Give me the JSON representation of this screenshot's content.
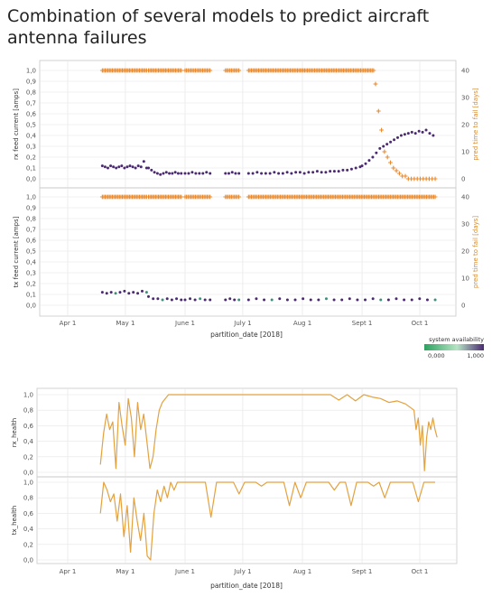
{
  "title": "Combination of several models to predict aircraft antenna failures",
  "colors": {
    "points": "#4b2a72",
    "points_alt": "#3f8f7a",
    "prediction": "#e8892b",
    "health": "#e3a23f",
    "grid": "#e6e6e6",
    "axis": "#c8c8c8"
  },
  "chart_data": [
    {
      "type": "scatter",
      "panel": "top",
      "xlabel": "partition_date [2018]",
      "x_ticks": [
        "Apr 1",
        "May 1",
        "June 1",
        "July 1",
        "Aug 1",
        "Sept 1",
        "Oct 1"
      ],
      "legend": {
        "title": "system availability",
        "min_label": "0,000",
        "max_label": "1,000",
        "colors": [
          "#2ca25f",
          "#b6e3c4",
          "#4b2a72"
        ]
      },
      "subplots": [
        {
          "name": "rx",
          "ylabel_left": "rx feed current [amps]",
          "ylabel_right": "pred time to fail [days]",
          "left_ticks": [
            "1,0",
            "0,9",
            "0,8",
            "0,7",
            "0,6",
            "0,5",
            "0,4",
            "0,3",
            "0,2",
            "0,1",
            "0,0"
          ],
          "right_ticks": [
            "40",
            "30",
            "20",
            "10",
            "0"
          ],
          "ylim_left": [
            0,
            1
          ],
          "ylim_right": [
            0,
            40
          ],
          "current_segments": [
            {
              "x_range": [
                "2018-04-19",
                "2018-05-12"
              ],
              "y_values": [
                0.12,
                0.11,
                0.1,
                0.12,
                0.11,
                0.1,
                0.11,
                0.12,
                0.1,
                0.11,
                0.12,
                0.11,
                0.1,
                0.12,
                0.11,
                0.16,
                0.1
              ]
            },
            {
              "x_range": [
                "2018-05-13",
                "2018-05-30"
              ],
              "y_values": [
                0.1,
                0.08,
                0.06,
                0.05,
                0.04,
                0.05,
                0.06,
                0.05,
                0.05,
                0.06,
                0.05,
                0.05
              ]
            },
            {
              "x_range": [
                "2018-06-01",
                "2018-06-14"
              ],
              "y_values": [
                0.05,
                0.05,
                0.06,
                0.05,
                0.05,
                0.05,
                0.06,
                0.05
              ]
            },
            {
              "x_range": [
                "2018-06-22",
                "2018-06-29"
              ],
              "y_values": [
                0.05,
                0.05,
                0.06,
                0.05,
                0.05
              ]
            },
            {
              "x_range": [
                "2018-07-04",
                "2018-08-31"
              ],
              "y_values": [
                0.05,
                0.05,
                0.06,
                0.05,
                0.05,
                0.05,
                0.06,
                0.05,
                0.05,
                0.06,
                0.05,
                0.06,
                0.06,
                0.05,
                0.06,
                0.06,
                0.07,
                0.06,
                0.06,
                0.07,
                0.07,
                0.07,
                0.08,
                0.08,
                0.09,
                0.1,
                0.11
              ]
            },
            {
              "x_range": [
                "2018-09-01",
                "2018-10-08"
              ],
              "y_values": [
                0.12,
                0.14,
                0.17,
                0.2,
                0.24,
                0.28,
                0.3,
                0.32,
                0.34,
                0.36,
                0.38,
                0.4,
                0.41,
                0.42,
                0.43,
                0.42,
                0.44,
                0.43,
                0.45,
                0.42,
                0.4
              ]
            }
          ],
          "prediction_segments": [
            {
              "x_range": [
                "2018-04-19",
                "2018-05-12"
              ],
              "y_values": [
                40
              ]
            },
            {
              "x_range": [
                "2018-05-13",
                "2018-05-30"
              ],
              "y_values": [
                40
              ]
            },
            {
              "x_range": [
                "2018-06-01",
                "2018-06-14"
              ],
              "y_values": [
                40
              ]
            },
            {
              "x_range": [
                "2018-06-22",
                "2018-06-29"
              ],
              "y_values": [
                40
              ]
            },
            {
              "x_range": [
                "2018-07-04",
                "2018-09-07"
              ],
              "y_values": [
                40
              ]
            },
            {
              "x_range": [
                "2018-09-08",
                "2018-10-09"
              ],
              "y_values": [
                35,
                25,
                18,
                10,
                8,
                6,
                4,
                3,
                2,
                1,
                1,
                0,
                0,
                0,
                0,
                0,
                0,
                0,
                0,
                0,
                0
              ]
            }
          ]
        },
        {
          "name": "tx",
          "ylabel_left": "tx feed current [amps]",
          "ylabel_right": "pred time to fail [days]",
          "left_ticks": [
            "1,0",
            "0,9",
            "0,8",
            "0,7",
            "0,6",
            "0,5",
            "0,4",
            "0,3",
            "0,2",
            "0,1",
            "0,0"
          ],
          "right_ticks": [
            "40",
            "30",
            "20",
            "10",
            "0"
          ],
          "ylim_left": [
            0,
            1
          ],
          "ylim_right": [
            0,
            40
          ],
          "current_segments": [
            {
              "x_range": [
                "2018-04-19",
                "2018-05-12"
              ],
              "y_values": [
                0.12,
                0.11,
                0.12,
                0.11,
                0.12,
                0.13,
                0.11,
                0.12,
                0.11,
                0.13,
                0.12
              ]
            },
            {
              "x_range": [
                "2018-05-13",
                "2018-05-30"
              ],
              "y_values": [
                0.08,
                0.06,
                0.06,
                0.05,
                0.06,
                0.05,
                0.06,
                0.05
              ]
            },
            {
              "x_range": [
                "2018-06-01",
                "2018-06-14"
              ],
              "y_values": [
                0.05,
                0.06,
                0.05,
                0.06,
                0.05,
                0.05
              ]
            },
            {
              "x_range": [
                "2018-06-22",
                "2018-06-29"
              ],
              "y_values": [
                0.05,
                0.06,
                0.05,
                0.05
              ]
            },
            {
              "x_range": [
                "2018-07-04",
                "2018-10-09"
              ],
              "y_values": [
                0.05,
                0.06,
                0.05,
                0.05,
                0.06,
                0.05,
                0.05,
                0.06,
                0.05,
                0.05,
                0.06,
                0.05,
                0.05,
                0.06,
                0.05,
                0.05,
                0.06,
                0.05,
                0.05,
                0.06,
                0.05,
                0.05,
                0.06,
                0.05,
                0.05
              ]
            }
          ],
          "prediction_segments": [
            {
              "x_range": [
                "2018-04-19",
                "2018-05-12"
              ],
              "y_values": [
                40
              ]
            },
            {
              "x_range": [
                "2018-05-13",
                "2018-05-30"
              ],
              "y_values": [
                40
              ]
            },
            {
              "x_range": [
                "2018-06-01",
                "2018-06-14"
              ],
              "y_values": [
                40
              ]
            },
            {
              "x_range": [
                "2018-06-22",
                "2018-06-29"
              ],
              "y_values": [
                40
              ]
            },
            {
              "x_range": [
                "2018-07-04",
                "2018-10-09"
              ],
              "y_values": [
                40
              ]
            }
          ]
        }
      ]
    },
    {
      "type": "line",
      "panel": "bottom",
      "xlabel": "partition_date [2018]",
      "x_ticks": [
        "Apr 1",
        "May 1",
        "June 1",
        "July 1",
        "Aug 1",
        "Sept 1",
        "Oct 1"
      ],
      "subplots": [
        {
          "name": "rx_health",
          "ylabel": "rx_health",
          "y_ticks": [
            "1,0",
            "0,8",
            "0,6",
            "0,4",
            "0,2",
            "0,0"
          ],
          "ylim": [
            0,
            1
          ],
          "series": [
            {
              "segments": [
                {
                  "x_range": [
                    "2018-04-18",
                    "2018-05-25"
                  ],
                  "y_values": [
                    0.1,
                    0.5,
                    0.75,
                    0.55,
                    0.65,
                    0.05,
                    0.9,
                    0.6,
                    0.35,
                    0.95,
                    0.7,
                    0.2,
                    0.9,
                    0.55,
                    0.75,
                    0.4,
                    0.05,
                    0.2,
                    0.55,
                    0.8,
                    0.9,
                    0.95,
                    1.0,
                    1.0
                  ]
                },
                {
                  "x_range": [
                    "2018-05-25",
                    "2018-09-28"
                  ],
                  "y_values": [
                    1.0,
                    1.0,
                    1.0,
                    1.0,
                    1.0,
                    1.0,
                    1.0,
                    1.0,
                    1.0,
                    1.0,
                    1.0,
                    1.0,
                    1.0,
                    1.0,
                    1.0,
                    1.0,
                    1.0,
                    1.0,
                    1.0,
                    1.0,
                    0.93,
                    1.0,
                    0.92,
                    1.0,
                    0.97,
                    0.95,
                    0.9,
                    0.92,
                    0.88,
                    0.8
                  ]
                },
                {
                  "x_range": [
                    "2018-09-28",
                    "2018-10-10"
                  ],
                  "y_values": [
                    0.8,
                    0.55,
                    0.7,
                    0.35,
                    0.6,
                    0.02,
                    0.45,
                    0.65,
                    0.55,
                    0.7,
                    0.55,
                    0.45
                  ]
                }
              ]
            }
          ]
        },
        {
          "name": "tx_health",
          "ylabel": "tx_health",
          "y_ticks": [
            "1,0",
            "0,8",
            "0,6",
            "0,4",
            "0,2",
            "0,0"
          ],
          "ylim": [
            0,
            1
          ],
          "series": [
            {
              "segments": [
                {
                  "x_range": [
                    "2018-04-18",
                    "2018-05-28"
                  ],
                  "y_values": [
                    0.6,
                    1.0,
                    0.9,
                    0.75,
                    0.85,
                    0.5,
                    0.85,
                    0.3,
                    0.7,
                    0.1,
                    0.8,
                    0.5,
                    0.25,
                    0.6,
                    0.05,
                    0.0,
                    0.6,
                    0.9,
                    0.75,
                    0.95,
                    0.8,
                    1.0,
                    0.9,
                    1.0
                  ]
                },
                {
                  "x_range": [
                    "2018-05-28",
                    "2018-10-09"
                  ],
                  "y_values": [
                    1.0,
                    1.0,
                    1.0,
                    1.0,
                    1.0,
                    1.0,
                    0.55,
                    1.0,
                    1.0,
                    1.0,
                    1.0,
                    0.85,
                    1.0,
                    1.0,
                    1.0,
                    0.95,
                    1.0,
                    1.0,
                    1.0,
                    1.0,
                    0.7,
                    1.0,
                    0.8,
                    1.0,
                    1.0,
                    1.0,
                    1.0,
                    1.0,
                    0.9,
                    1.0,
                    1.0,
                    0.7,
                    1.0,
                    1.0,
                    1.0,
                    0.95,
                    1.0,
                    0.8,
                    1.0,
                    1.0,
                    1.0,
                    1.0,
                    1.0,
                    0.75,
                    1.0,
                    1.0,
                    1.0
                  ]
                }
              ]
            }
          ]
        }
      ]
    }
  ]
}
